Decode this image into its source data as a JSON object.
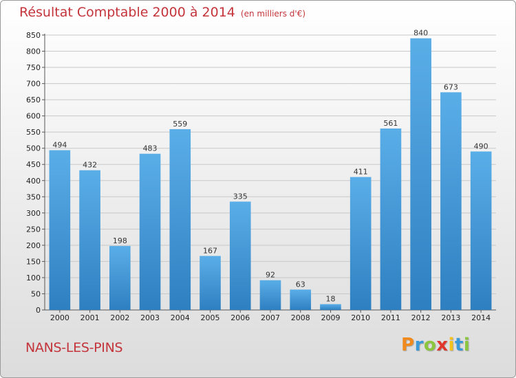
{
  "title": "Résultat Comptable 2000 à 2014",
  "subtitle": "(en milliers d'€)",
  "city": "NANS-LES-PINS",
  "logo": {
    "text": "Proxiti",
    "letters": [
      {
        "ch": "P",
        "color": "#f08a1c"
      },
      {
        "ch": "r",
        "color": "#3a9ad9"
      },
      {
        "ch": "o",
        "color": "#8cc63f"
      },
      {
        "ch": "x",
        "color": "#e0352b"
      },
      {
        "ch": "i",
        "color": "#f4c21b"
      },
      {
        "ch": "t",
        "color": "#3a9ad9"
      },
      {
        "ch": "i",
        "color": "#8cc63f"
      }
    ]
  },
  "colors": {
    "title": "#c4343b",
    "bar_light": "#5aaee8",
    "bar_dark": "#2e7fc0",
    "grid": "#c8c8c8"
  },
  "chart_data": {
    "type": "bar",
    "title": "Résultat Comptable 2000 à 2014",
    "subtitle": "(en milliers d'€)",
    "xlabel": "",
    "ylabel": "",
    "ylim": [
      0,
      850
    ],
    "ytick_step": 50,
    "grid": true,
    "categories": [
      "2000",
      "2001",
      "2002",
      "2003",
      "2004",
      "2005",
      "2006",
      "2007",
      "2008",
      "2009",
      "2010",
      "2011",
      "2012",
      "2013",
      "2014"
    ],
    "values": [
      494,
      432,
      198,
      483,
      559,
      167,
      335,
      92,
      63,
      18,
      411,
      561,
      840,
      673,
      490
    ]
  }
}
